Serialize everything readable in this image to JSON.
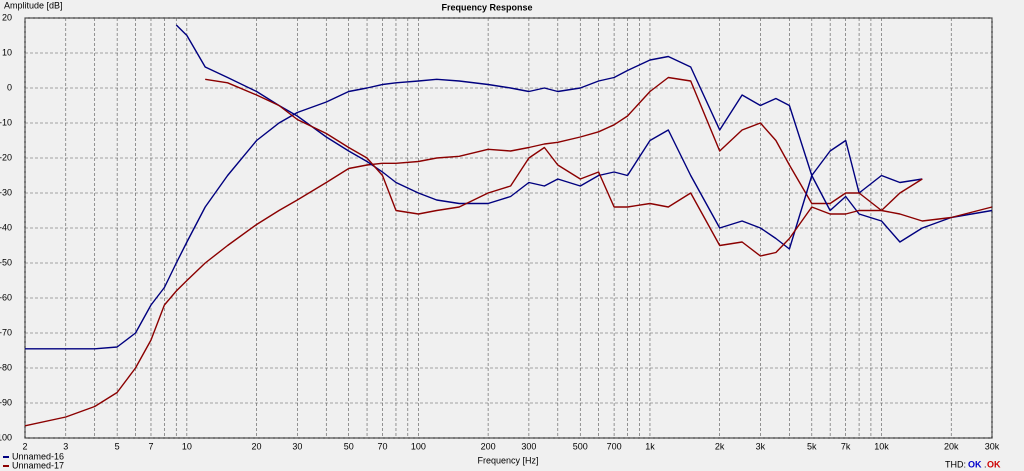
{
  "chart_data": {
    "type": "line",
    "title": "Frequency Response",
    "y_label": "Amplitude [dB]",
    "x_label": "Frequency [Hz]",
    "thd_label": "THD:",
    "thd_status": [
      "OK",
      "OK"
    ],
    "thd_separator": ".",
    "log_x": true,
    "grid": true,
    "xlim": [
      2,
      30000
    ],
    "ylim": [
      -100,
      20
    ],
    "yticks": [
      20,
      10,
      0,
      -10,
      -20,
      -30,
      -40,
      -50,
      -60,
      -70,
      -80,
      -90,
      -100
    ],
    "xticks": [
      2,
      3,
      5,
      7,
      10,
      20,
      30,
      50,
      70,
      100,
      200,
      300,
      500,
      700,
      {
        "value": 1000,
        "label": "1k"
      },
      {
        "value": 2000,
        "label": "2k"
      },
      {
        "value": 3000,
        "label": "3k"
      },
      {
        "value": 5000,
        "label": "5k"
      },
      {
        "value": 7000,
        "label": "7k"
      },
      {
        "value": 10000,
        "label": "10k"
      },
      {
        "value": 20000,
        "label": "20k"
      },
      {
        "value": 30000,
        "label": "30k"
      }
    ],
    "x_minor_ticks": [
      4,
      6,
      8,
      9,
      40,
      60,
      80,
      90,
      400,
      600,
      800,
      900,
      4000,
      6000,
      8000,
      9000
    ],
    "x": [
      2,
      3,
      4,
      5,
      6,
      7,
      8,
      9,
      10,
      12,
      15,
      20,
      25,
      30,
      40,
      50,
      60,
      70,
      80,
      100,
      120,
      150,
      200,
      250,
      300,
      350,
      400,
      500,
      600,
      700,
      800,
      1000,
      1200,
      1500,
      2000,
      2500,
      3000,
      3500,
      4000,
      5000,
      6000,
      7000,
      8000,
      10000,
      12000,
      15000,
      20000,
      30000
    ],
    "series": [
      {
        "name": "Unnamed-16",
        "color": "#00007f",
        "values": [
          -74.5,
          -74.5,
          -74.5,
          -74,
          -70,
          -62,
          -57,
          -50,
          -44,
          -34,
          -25,
          -15,
          -10,
          -7,
          -4,
          -1,
          0,
          1,
          1.5,
          2,
          2.5,
          2,
          1,
          0,
          -1,
          0,
          -1,
          0,
          2,
          3,
          5,
          8,
          9,
          6,
          -12,
          -2,
          -5,
          -3,
          -5,
          -25,
          -18,
          -15,
          -30,
          -25,
          -27,
          -26,
          null,
          null
        ]
      },
      {
        "name": "Unnamed-17",
        "color": "#8b0000",
        "values": [
          -96.5,
          -94,
          -91,
          -87,
          -80,
          -72,
          -62,
          -58,
          -55,
          -50,
          -45,
          -39,
          -35,
          -32,
          -27,
          -23,
          -22,
          -21.5,
          -21.5,
          -21,
          -20,
          -19.5,
          -17.5,
          -18,
          -17,
          -16,
          -15.5,
          -14,
          -12.5,
          -10.5,
          -8,
          -1,
          3,
          2,
          -18,
          -12,
          -10,
          -15,
          -22,
          -33,
          -33,
          -30,
          -30,
          -35,
          -30,
          -26,
          null,
          null
        ]
      },
      {
        "color": "#00007f",
        "values": [
          null,
          null,
          null,
          null,
          null,
          null,
          null,
          18,
          15,
          6,
          3,
          -1,
          -5,
          -8,
          -14,
          -18,
          -21,
          -24,
          -27,
          -30,
          -32,
          -33,
          -33,
          -31,
          -27,
          -28,
          -26,
          -28,
          -25,
          -24,
          -25,
          -15,
          -12,
          -25,
          -40,
          -38,
          -40,
          -43,
          -46,
          -25,
          -35,
          -31,
          -36,
          -38,
          -44,
          -40,
          -37,
          -35
        ]
      },
      {
        "color": "#8b0000",
        "values": [
          null,
          null,
          null,
          null,
          null,
          null,
          null,
          null,
          null,
          2.5,
          1.5,
          -2,
          -5,
          -9,
          -13,
          -17,
          -20,
          -25,
          -35,
          -36,
          -35,
          -34,
          -30,
          -28,
          -20,
          -17,
          -22,
          -26,
          -24,
          -34,
          -34,
          -33,
          -34,
          -30,
          -45,
          -44,
          -48,
          -47,
          -43,
          -34,
          -36,
          -36,
          -35,
          -35,
          -36,
          -38,
          -37,
          -34
        ]
      }
    ]
  }
}
